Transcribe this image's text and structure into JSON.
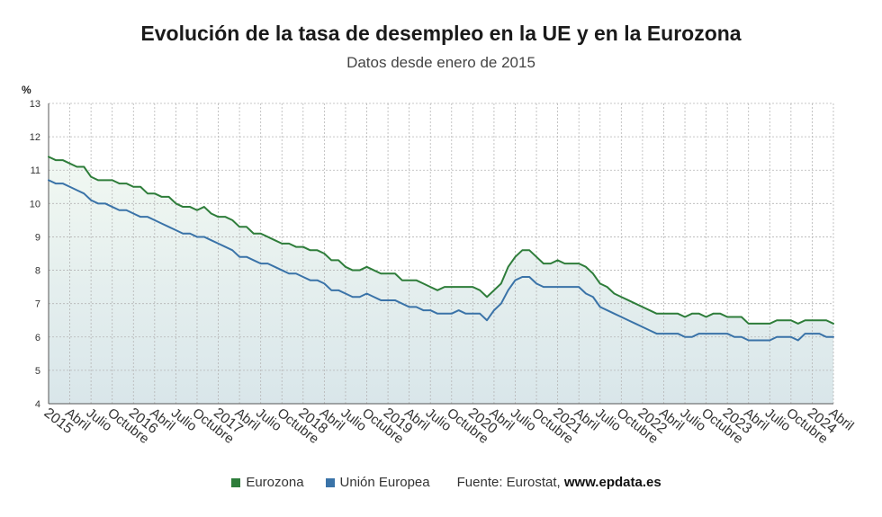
{
  "colors": {
    "eurozona": "#2e7d3a",
    "union_europea": "#3a73a8",
    "grid": "#b5b5b5",
    "axis_text": "#333333"
  },
  "legend": {
    "eurozona": "Eurozona",
    "union_europea": "Unión Europea",
    "source_prefix": "Fuente: Eurostat, ",
    "source_site": "www.epdata.es"
  },
  "chart_data": {
    "type": "area",
    "title": "Evolución de la tasa de desempleo en la UE y en la Eurozona",
    "subtitle": "Datos desde enero de 2015",
    "ylabel": "%",
    "ylim": [
      4,
      13
    ],
    "yticks": [
      4,
      5,
      6,
      7,
      8,
      9,
      10,
      11,
      12,
      13
    ],
    "grid": true,
    "legend_position": "bottom",
    "x_start": "2015-01",
    "x_end": "2024-04",
    "x_tick_labels": [
      "2015",
      "Abril",
      "Julio",
      "Octubre",
      "2016",
      "Abril",
      "Julio",
      "Octubre",
      "2017",
      "Abril",
      "Julio",
      "Octubre",
      "2018",
      "Abril",
      "Julio",
      "Octubre",
      "2019",
      "Abril",
      "Julio",
      "Octubre",
      "2020",
      "Abril",
      "Julio",
      "Octubre",
      "2021",
      "Abril",
      "Julio",
      "Octubre",
      "2022",
      "Abril",
      "Julio",
      "Octubre",
      "2023",
      "Abril",
      "Julio",
      "Octubre",
      "2024",
      "Abril"
    ],
    "series": [
      {
        "name": "Eurozona",
        "values": [
          11.4,
          11.3,
          11.3,
          11.2,
          11.1,
          11.1,
          10.8,
          10.7,
          10.7,
          10.7,
          10.6,
          10.6,
          10.5,
          10.5,
          10.3,
          10.3,
          10.2,
          10.2,
          10.0,
          9.9,
          9.9,
          9.8,
          9.9,
          9.7,
          9.6,
          9.6,
          9.5,
          9.3,
          9.3,
          9.1,
          9.1,
          9.0,
          8.9,
          8.8,
          8.8,
          8.7,
          8.7,
          8.6,
          8.6,
          8.5,
          8.3,
          8.3,
          8.1,
          8.0,
          8.0,
          8.1,
          8.0,
          7.9,
          7.9,
          7.9,
          7.7,
          7.7,
          7.7,
          7.6,
          7.5,
          7.4,
          7.5,
          7.5,
          7.5,
          7.5,
          7.5,
          7.4,
          7.2,
          7.4,
          7.6,
          8.1,
          8.4,
          8.6,
          8.6,
          8.4,
          8.2,
          8.2,
          8.3,
          8.2,
          8.2,
          8.2,
          8.1,
          7.9,
          7.6,
          7.5,
          7.3,
          7.2,
          7.1,
          7.0,
          6.9,
          6.8,
          6.7,
          6.7,
          6.7,
          6.7,
          6.6,
          6.7,
          6.7,
          6.6,
          6.7,
          6.7,
          6.6,
          6.6,
          6.6,
          6.4,
          6.4,
          6.4,
          6.4,
          6.5,
          6.5,
          6.5,
          6.4,
          6.5,
          6.5,
          6.5,
          6.5,
          6.4
        ]
      },
      {
        "name": "Unión Europea",
        "values": [
          10.7,
          10.6,
          10.6,
          10.5,
          10.4,
          10.3,
          10.1,
          10.0,
          10.0,
          9.9,
          9.8,
          9.8,
          9.7,
          9.6,
          9.6,
          9.5,
          9.4,
          9.3,
          9.2,
          9.1,
          9.1,
          9.0,
          9.0,
          8.9,
          8.8,
          8.7,
          8.6,
          8.4,
          8.4,
          8.3,
          8.2,
          8.2,
          8.1,
          8.0,
          7.9,
          7.9,
          7.8,
          7.7,
          7.7,
          7.6,
          7.4,
          7.4,
          7.3,
          7.2,
          7.2,
          7.3,
          7.2,
          7.1,
          7.1,
          7.1,
          7.0,
          6.9,
          6.9,
          6.8,
          6.8,
          6.7,
          6.7,
          6.7,
          6.8,
          6.7,
          6.7,
          6.7,
          6.5,
          6.8,
          7.0,
          7.4,
          7.7,
          7.8,
          7.8,
          7.6,
          7.5,
          7.5,
          7.5,
          7.5,
          7.5,
          7.5,
          7.3,
          7.2,
          6.9,
          6.8,
          6.7,
          6.6,
          6.5,
          6.4,
          6.3,
          6.2,
          6.1,
          6.1,
          6.1,
          6.1,
          6.0,
          6.0,
          6.1,
          6.1,
          6.1,
          6.1,
          6.1,
          6.0,
          6.0,
          5.9,
          5.9,
          5.9,
          5.9,
          6.0,
          6.0,
          6.0,
          5.9,
          6.1,
          6.1,
          6.1,
          6.0,
          6.0
        ]
      }
    ]
  }
}
